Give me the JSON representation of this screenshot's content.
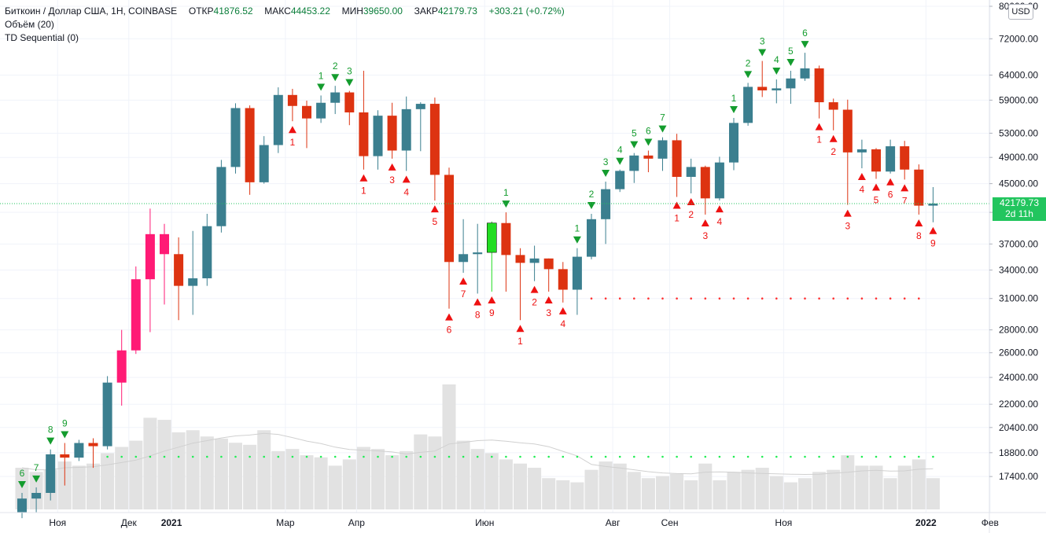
{
  "header": {
    "symbol": "Биткоин / Доллар США, 1Н, COINBASE",
    "open_label": "ОТКР",
    "open": "41876.52",
    "high_label": "МАКС",
    "high": "44453.22",
    "low_label": "МИН",
    "low": "39650.00",
    "close_label": "ЗАКР",
    "close": "42179.73",
    "change": "+303.21 (+0.72%)"
  },
  "indicators": [
    "Объём (20)",
    "TD Sequential (0)"
  ],
  "currency_button": "USD",
  "last_price": {
    "value": "42179.73",
    "countdown": "2d 11h"
  },
  "colors": {
    "up": "#3b7f8f",
    "down": "#dd3311",
    "magenta": "#ff1a75",
    "green_bar": "#22dd22",
    "up_signal": "#149c2e",
    "down_signal": "#ee1111",
    "volume": "#e2e2e2",
    "dots_green": "#22ee55",
    "dots_red": "#ff3333"
  },
  "chart_data": {
    "type": "candlestick",
    "title": "Биткоин / Доллар США, 1Н, COINBASE",
    "yscale": "log",
    "ylim": [
      16500,
      80000
    ],
    "y_ticks": [
      "80000.00",
      "72000.00",
      "64000.00",
      "59000.00",
      "53000.00",
      "49000.00",
      "45000.00",
      "41000.00",
      "37000.00",
      "34000.00",
      "31000.00",
      "28000.00",
      "26000.00",
      "24000.00",
      "22000.00",
      "20400.00",
      "18800.00",
      "17400.00"
    ],
    "x_ticks": [
      "Ноя",
      "Дек",
      "2021",
      "Мар",
      "Апр",
      "Июн",
      "Авг",
      "Сен",
      "Ноя",
      "2022",
      "Фев"
    ],
    "x_tick_pos": [
      2.5,
      7.5,
      10.5,
      18.5,
      23.5,
      32.5,
      41.5,
      45.5,
      53.5,
      63.5,
      68.0
    ],
    "candles": [
      {
        "o": 15500,
        "h": 16500,
        "l": 15200,
        "c": 16200,
        "v": 1,
        "s": "6",
        "sc": "g"
      },
      {
        "o": 16200,
        "h": 16800,
        "l": 15500,
        "c": 16500,
        "v": 0.9,
        "s": "7",
        "sc": "g"
      },
      {
        "o": 16500,
        "h": 19000,
        "l": 16100,
        "c": 18700,
        "v": 0.95,
        "s": "8",
        "sc": "g"
      },
      {
        "o": 18700,
        "h": 19400,
        "l": 16900,
        "c": 18500,
        "v": 1.15,
        "s": "9",
        "sc": "g"
      },
      {
        "o": 18500,
        "h": 19600,
        "l": 18300,
        "c": 19400,
        "v": 1.05,
        "s": "",
        "sc": ""
      },
      {
        "o": 19400,
        "h": 19700,
        "l": 17900,
        "c": 19200,
        "v": 1.1,
        "s": "",
        "sc": ""
      },
      {
        "o": 19200,
        "h": 24100,
        "l": 19000,
        "c": 23600,
        "v": 1.35,
        "s": "",
        "sc": ""
      },
      {
        "o": 23600,
        "h": 28000,
        "l": 21900,
        "c": 26200,
        "v": 1.5,
        "s": "",
        "sc": "",
        "col": "magenta"
      },
      {
        "o": 26200,
        "h": 34400,
        "l": 25900,
        "c": 33000,
        "v": 1.65,
        "s": "",
        "sc": "",
        "col": "magenta"
      },
      {
        "o": 33000,
        "h": 41500,
        "l": 27800,
        "c": 38200,
        "v": 2.2,
        "s": "",
        "sc": "",
        "col": "magenta"
      },
      {
        "o": 38200,
        "h": 39500,
        "l": 30400,
        "c": 35800,
        "v": 2.15,
        "s": "",
        "sc": "",
        "col": "magenta"
      },
      {
        "o": 35800,
        "h": 37800,
        "l": 28900,
        "c": 32300,
        "v": 1.85,
        "s": "",
        "sc": ""
      },
      {
        "o": 32300,
        "h": 38600,
        "l": 29400,
        "c": 33100,
        "v": 1.9,
        "s": "",
        "sc": ""
      },
      {
        "o": 33100,
        "h": 40800,
        "l": 32300,
        "c": 39200,
        "v": 1.75,
        "s": "",
        "sc": ""
      },
      {
        "o": 39200,
        "h": 48600,
        "l": 38400,
        "c": 47500,
        "v": 1.7,
        "s": "",
        "sc": ""
      },
      {
        "o": 47500,
        "h": 58400,
        "l": 46500,
        "c": 57500,
        "v": 1.6,
        "s": "",
        "sc": ""
      },
      {
        "o": 57500,
        "h": 58000,
        "l": 43400,
        "c": 45200,
        "v": 1.55,
        "s": "",
        "sc": ""
      },
      {
        "o": 45200,
        "h": 52500,
        "l": 45000,
        "c": 51000,
        "v": 1.9,
        "s": "",
        "sc": ""
      },
      {
        "o": 51000,
        "h": 61500,
        "l": 49700,
        "c": 60000,
        "v": 1.4,
        "s": "",
        "sc": ""
      },
      {
        "o": 60000,
        "h": 61200,
        "l": 55100,
        "c": 57900,
        "v": 1.45,
        "s": "1",
        "sc": "r"
      },
      {
        "o": 57900,
        "h": 58900,
        "l": 50500,
        "c": 55600,
        "v": 1.3,
        "s": "",
        "sc": ""
      },
      {
        "o": 55600,
        "h": 59900,
        "l": 54800,
        "c": 58500,
        "v": 1.25,
        "s": "1",
        "sc": "g"
      },
      {
        "o": 58500,
        "h": 61800,
        "l": 56400,
        "c": 60500,
        "v": 1.05,
        "s": "2",
        "sc": "g"
      },
      {
        "o": 60500,
        "h": 60800,
        "l": 54400,
        "c": 56700,
        "v": 1.2,
        "s": "3",
        "sc": "g"
      },
      {
        "o": 56700,
        "h": 64900,
        "l": 47100,
        "c": 49200,
        "v": 1.5,
        "s": "1",
        "sc": "r"
      },
      {
        "o": 49200,
        "h": 57100,
        "l": 47100,
        "c": 56100,
        "v": 1.45,
        "s": "",
        "sc": ""
      },
      {
        "o": 56100,
        "h": 58500,
        "l": 48800,
        "c": 50100,
        "v": 1.3,
        "s": "3",
        "sc": "r"
      },
      {
        "o": 50100,
        "h": 59700,
        "l": 46900,
        "c": 57300,
        "v": 1.4,
        "s": "4",
        "sc": "r"
      },
      {
        "o": 57300,
        "h": 58600,
        "l": 50000,
        "c": 58300,
        "v": 1.8,
        "s": "",
        "sc": ""
      },
      {
        "o": 58300,
        "h": 59500,
        "l": 42600,
        "c": 46300,
        "v": 1.75,
        "s": "5",
        "sc": "r"
      },
      {
        "o": 46300,
        "h": 47400,
        "l": 30000,
        "c": 34900,
        "v": 3.0,
        "s": "6",
        "sc": "r"
      },
      {
        "o": 34900,
        "h": 40100,
        "l": 33700,
        "c": 35800,
        "v": 1.65,
        "s": "7",
        "sc": "r"
      },
      {
        "o": 35800,
        "h": 39500,
        "l": 31500,
        "c": 36000,
        "v": 1.45,
        "s": "8",
        "sc": "r"
      },
      {
        "o": 36000,
        "h": 39800,
        "l": 31700,
        "c": 39600,
        "v": 1.35,
        "s": "9",
        "sc": "r",
        "col": "green"
      },
      {
        "o": 39600,
        "h": 41000,
        "l": 31700,
        "c": 35700,
        "v": 1.2,
        "s": "1",
        "sc": "g"
      },
      {
        "o": 35700,
        "h": 36500,
        "l": 28900,
        "c": 34800,
        "v": 1.1,
        "s": "1",
        "sc": "r"
      },
      {
        "o": 34800,
        "h": 36800,
        "l": 32800,
        "c": 35300,
        "v": 1.0,
        "s": "2",
        "sc": "r"
      },
      {
        "o": 35300,
        "h": 35300,
        "l": 31700,
        "c": 34100,
        "v": 0.75,
        "s": "3",
        "sc": "r"
      },
      {
        "o": 34100,
        "h": 34900,
        "l": 30600,
        "c": 31900,
        "v": 0.7,
        "s": "4",
        "sc": "r"
      },
      {
        "o": 31900,
        "h": 36500,
        "l": 29400,
        "c": 35500,
        "v": 0.65,
        "s": "1",
        "sc": "g"
      },
      {
        "o": 35500,
        "h": 40800,
        "l": 35200,
        "c": 40100,
        "v": 0.95,
        "s": "2",
        "sc": "g"
      },
      {
        "o": 40100,
        "h": 45300,
        "l": 37000,
        "c": 44200,
        "v": 1.15,
        "s": "3",
        "sc": "g"
      },
      {
        "o": 44200,
        "h": 47100,
        "l": 43800,
        "c": 46900,
        "v": 1.1,
        "s": "4",
        "sc": "g"
      },
      {
        "o": 46900,
        "h": 49700,
        "l": 45100,
        "c": 49300,
        "v": 0.9,
        "s": "5",
        "sc": "g"
      },
      {
        "o": 49300,
        "h": 50100,
        "l": 46700,
        "c": 48800,
        "v": 0.75,
        "s": "6",
        "sc": "g"
      },
      {
        "o": 48800,
        "h": 52300,
        "l": 46900,
        "c": 51800,
        "v": 0.8,
        "s": "7",
        "sc": "g"
      },
      {
        "o": 51800,
        "h": 52900,
        "l": 43100,
        "c": 46000,
        "v": 0.85,
        "s": "1",
        "sc": "r"
      },
      {
        "o": 46000,
        "h": 48800,
        "l": 43600,
        "c": 47500,
        "v": 0.7,
        "s": "2",
        "sc": "r"
      },
      {
        "o": 47500,
        "h": 47700,
        "l": 40700,
        "c": 42900,
        "v": 1.1,
        "s": "3",
        "sc": "r"
      },
      {
        "o": 42900,
        "h": 49100,
        "l": 42600,
        "c": 48200,
        "v": 0.7,
        "s": "4",
        "sc": "r"
      },
      {
        "o": 48200,
        "h": 55700,
        "l": 47000,
        "c": 54800,
        "v": 0.9,
        "s": "1",
        "sc": "g"
      },
      {
        "o": 54800,
        "h": 62400,
        "l": 54300,
        "c": 61600,
        "v": 0.95,
        "s": "2",
        "sc": "g"
      },
      {
        "o": 61600,
        "h": 67000,
        "l": 59600,
        "c": 60900,
        "v": 1.0,
        "s": "3",
        "sc": "g"
      },
      {
        "o": 60900,
        "h": 63100,
        "l": 58400,
        "c": 61300,
        "v": 0.8,
        "s": "4",
        "sc": "g"
      },
      {
        "o": 61300,
        "h": 64900,
        "l": 58300,
        "c": 63300,
        "v": 0.65,
        "s": "5",
        "sc": "g"
      },
      {
        "o": 63300,
        "h": 68800,
        "l": 62800,
        "c": 65400,
        "v": 0.75,
        "s": "6",
        "sc": "g"
      },
      {
        "o": 65400,
        "h": 66000,
        "l": 55600,
        "c": 58600,
        "v": 0.9,
        "s": "1",
        "sc": "r"
      },
      {
        "o": 58600,
        "h": 59300,
        "l": 53500,
        "c": 57200,
        "v": 0.95,
        "s": "2",
        "sc": "r"
      },
      {
        "o": 57200,
        "h": 59100,
        "l": 42000,
        "c": 49800,
        "v": 1.3,
        "s": "3",
        "sc": "r"
      },
      {
        "o": 49800,
        "h": 51900,
        "l": 47300,
        "c": 50300,
        "v": 1.05,
        "s": "4",
        "sc": "r"
      },
      {
        "o": 50300,
        "h": 50500,
        "l": 45700,
        "c": 46800,
        "v": 1.05,
        "s": "5",
        "sc": "r"
      },
      {
        "o": 46800,
        "h": 51900,
        "l": 46500,
        "c": 50800,
        "v": 0.75,
        "s": "6",
        "sc": "r"
      },
      {
        "o": 50800,
        "h": 51700,
        "l": 45600,
        "c": 47100,
        "v": 1.05,
        "s": "7",
        "sc": "r"
      },
      {
        "o": 47100,
        "h": 47900,
        "l": 40700,
        "c": 41900,
        "v": 1.2,
        "s": "8",
        "sc": "r"
      },
      {
        "o": 41900,
        "h": 44500,
        "l": 39700,
        "c": 42180,
        "v": 0.75,
        "s": "9",
        "sc": "r"
      }
    ],
    "support_level": {
      "value": 31000,
      "from": 40,
      "to": 63
    },
    "volume_ma_dots": {
      "from": 6,
      "to": 64
    },
    "last_price_value": 42179.73
  }
}
